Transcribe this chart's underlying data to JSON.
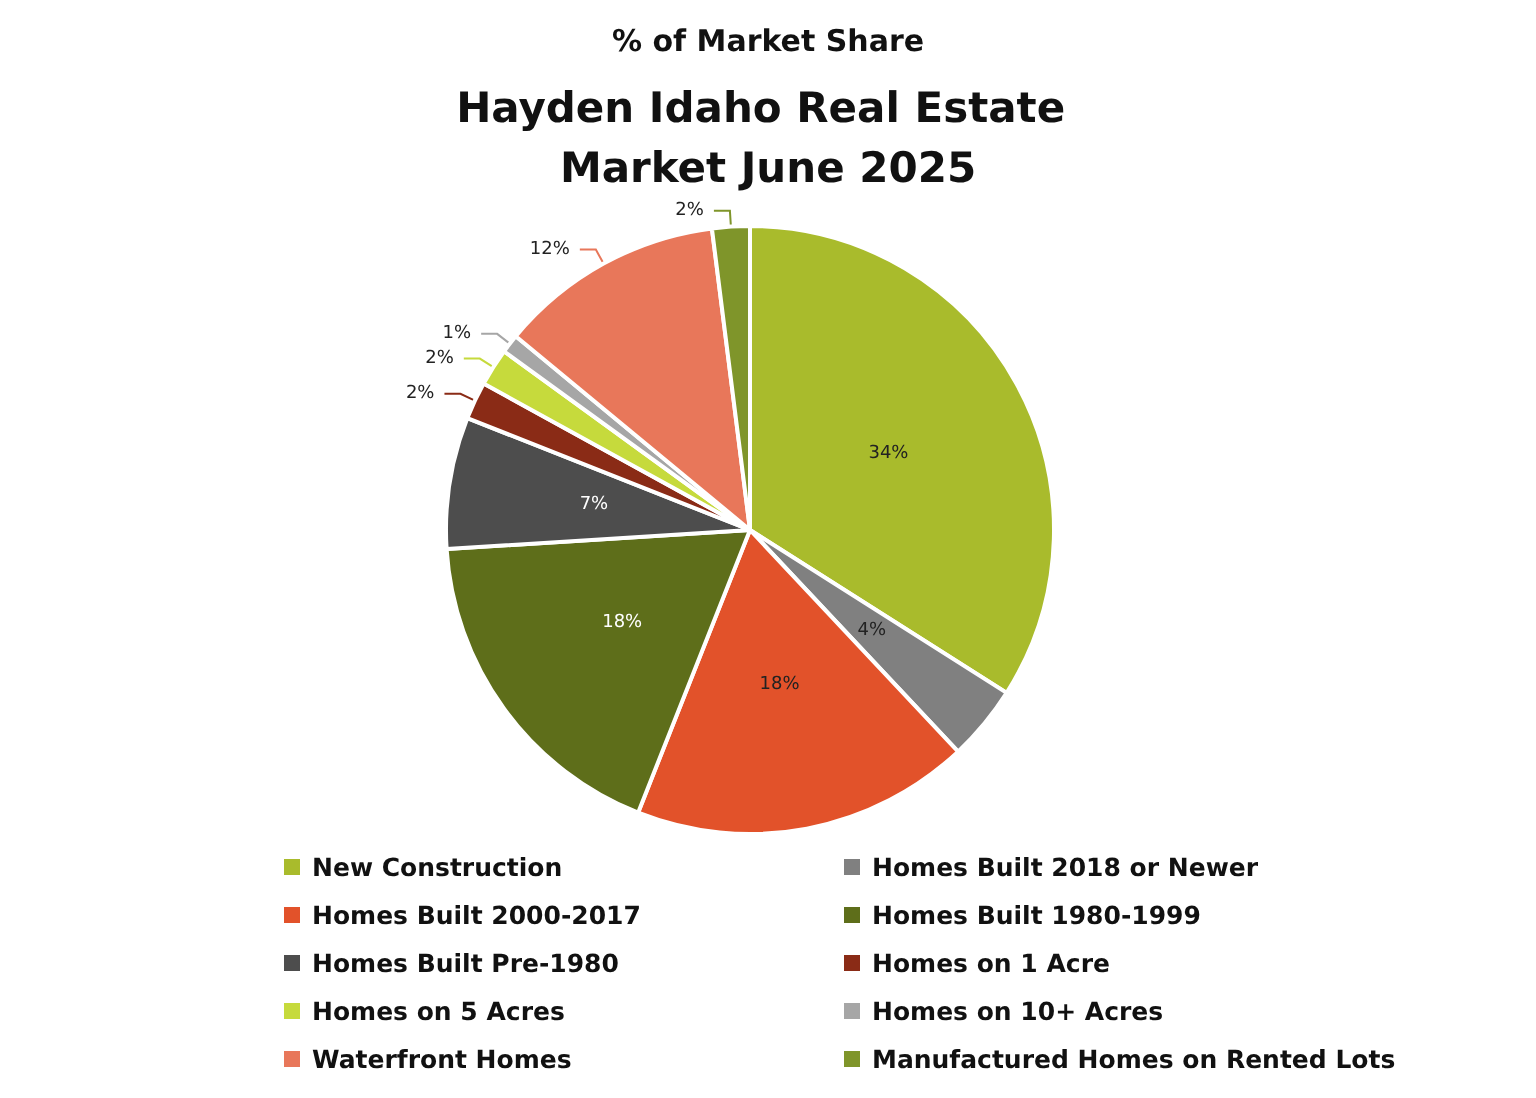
{
  "chart_data": {
    "type": "pie",
    "subtitle": "% of Market Share",
    "title": "Hayden Idaho Real Estate Market June 2025",
    "categories": [
      "New Construction",
      "Homes Built 2018 or Newer",
      "Homes Built 2000-2017",
      "Homes Built 1980-1999",
      "Homes Built Pre-1980",
      "Homes on 1 Acre",
      "Homes on 5 Acres",
      "Homes on 10+ Acres",
      "Waterfront Homes",
      "Manufactured Homes on Rented Lots"
    ],
    "values": [
      34,
      4,
      18,
      18,
      7,
      2,
      2,
      1,
      12,
      2
    ],
    "colors": [
      "#a9bb2c",
      "#808080",
      "#e2522a",
      "#5e6e1a",
      "#4d4d4d",
      "#8a2b16",
      "#c6da3c",
      "#a6a6a6",
      "#e8775a",
      "#7f952a"
    ],
    "value_labels": [
      "34%",
      "4%",
      "18%",
      "18%",
      "7%",
      "2%",
      "2%",
      "1%",
      "12%",
      "2%"
    ],
    "legend": "bottom"
  }
}
